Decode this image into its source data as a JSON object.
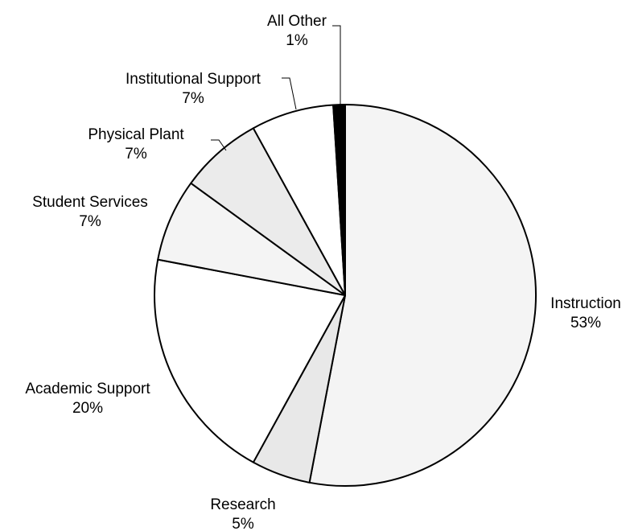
{
  "chart_data": {
    "type": "pie",
    "title": "",
    "start_angle_deg": 0,
    "direction": "clockwise",
    "slices": [
      {
        "label": "Instruction",
        "value": 53,
        "value_label": "53%",
        "color": "#f4f4f4"
      },
      {
        "label": "Research",
        "value": 5,
        "value_label": "5%",
        "color": "#e8e8e8"
      },
      {
        "label": "Academic Support",
        "value": 20,
        "value_label": "20%",
        "color": "#ffffff"
      },
      {
        "label": "Student Services",
        "value": 7,
        "value_label": "7%",
        "color": "#f4f4f4"
      },
      {
        "label": "Physical Plant",
        "value": 7,
        "value_label": "7%",
        "color": "#ebebeb"
      },
      {
        "label": "Institutional Support",
        "value": 7,
        "value_label": "7%",
        "color": "#ffffff"
      },
      {
        "label": "All Other",
        "value": 1,
        "value_label": "1%",
        "color": "#000000"
      }
    ]
  }
}
